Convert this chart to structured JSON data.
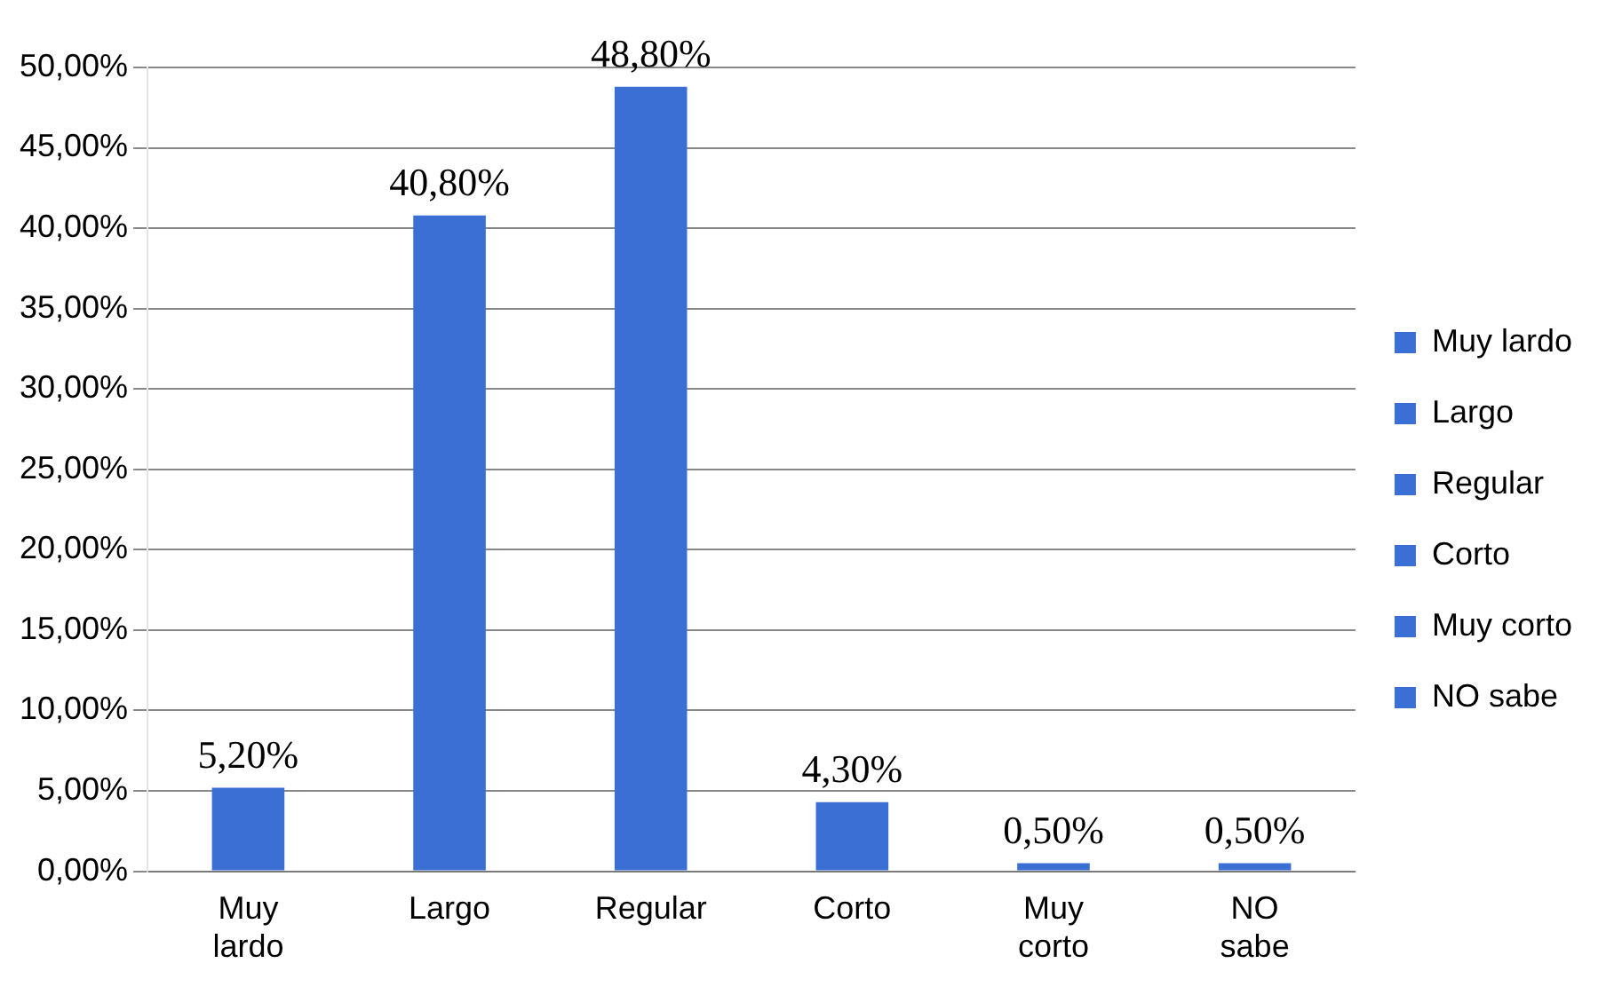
{
  "chart_data": {
    "type": "bar",
    "categories": [
      "Muy lardo",
      "Largo",
      "Regular",
      "Corto",
      "Muy corto",
      "NO sabe"
    ],
    "series": [
      {
        "name": "Muy lardo",
        "color": "#3b6fd4",
        "values": [
          5.2,
          null,
          null,
          null,
          null,
          null
        ],
        "value_labels": [
          "5,20%",
          null,
          null,
          null,
          null,
          null
        ]
      },
      {
        "name": "Largo",
        "color": "#3b6fd4",
        "values": [
          null,
          40.8,
          null,
          null,
          null,
          null
        ],
        "value_labels": [
          null,
          "40,80%",
          null,
          null,
          null,
          null
        ]
      },
      {
        "name": "Regular",
        "color": "#3b6fd4",
        "values": [
          null,
          null,
          48.8,
          null,
          null,
          null
        ],
        "value_labels": [
          null,
          null,
          "48,80%",
          null,
          null,
          null
        ]
      },
      {
        "name": "Corto",
        "color": "#3b6fd4",
        "values": [
          null,
          null,
          null,
          4.3,
          null,
          null
        ],
        "value_labels": [
          null,
          null,
          null,
          "4,30%",
          null,
          null
        ]
      },
      {
        "name": "Muy corto",
        "color": "#3b6fd4",
        "values": [
          null,
          null,
          null,
          null,
          0.5,
          null
        ],
        "value_labels": [
          null,
          null,
          null,
          null,
          "0,50%",
          null
        ]
      },
      {
        "name": "NO sabe",
        "color": "#3b6fd4",
        "values": [
          null,
          null,
          null,
          null,
          null,
          0.5
        ],
        "value_labels": [
          null,
          null,
          null,
          null,
          null,
          "0,50%"
        ]
      }
    ],
    "ylim": [
      0,
      50
    ],
    "yticks": [
      {
        "value": 0,
        "label": "0,00%"
      },
      {
        "value": 5,
        "label": "5,00%"
      },
      {
        "value": 10,
        "label": "10,00%"
      },
      {
        "value": 15,
        "label": "15,00%"
      },
      {
        "value": 20,
        "label": "20,00%"
      },
      {
        "value": 25,
        "label": "25,00%"
      },
      {
        "value": 30,
        "label": "30,00%"
      },
      {
        "value": 35,
        "label": "35,00%"
      },
      {
        "value": 40,
        "label": "40,00%"
      },
      {
        "value": 45,
        "label": "45,00%"
      },
      {
        "value": 50,
        "label": "50,00%"
      }
    ],
    "grid": "y",
    "legend": "right"
  }
}
